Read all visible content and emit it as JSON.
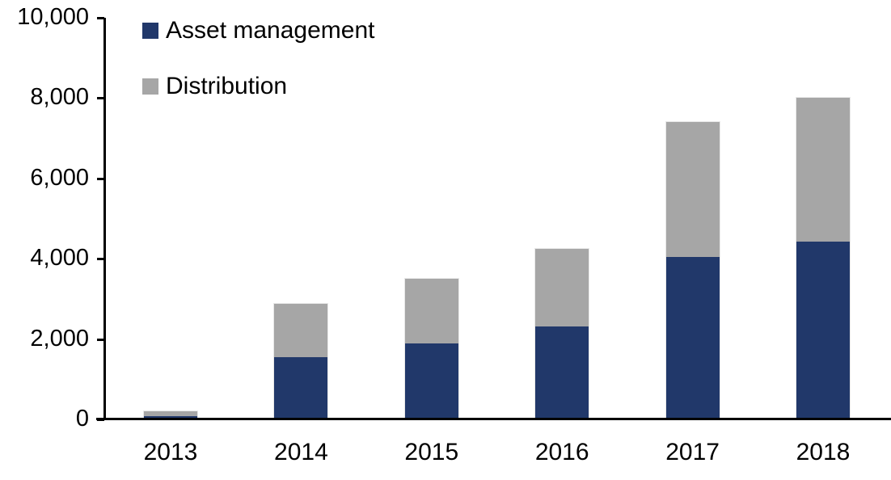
{
  "chart_data": {
    "type": "bar",
    "stacked": true,
    "title": "",
    "xlabel": "",
    "ylabel": "",
    "grid": false,
    "legend_position": "top-left",
    "categories": [
      "2013",
      "2014",
      "2015",
      "2016",
      "2017",
      "2018"
    ],
    "series": [
      {
        "name": "Asset management",
        "color": "#21386A",
        "values": [
          90,
          1550,
          1900,
          2320,
          4050,
          4430
        ]
      },
      {
        "name": "Distribution",
        "color": "#A6A6A6",
        "values": [
          110,
          1320,
          1600,
          1930,
          3350,
          3570
        ]
      }
    ],
    "totals": [
      200,
      2870,
      3500,
      4250,
      7400,
      8000
    ],
    "ylim": [
      0,
      10000
    ],
    "ytick_interval": 2000,
    "ytick_values": [
      0,
      2000,
      4000,
      6000,
      8000,
      10000
    ],
    "ytick_labels": [
      "0",
      "2,000",
      "4,000",
      "6,000",
      "8,000",
      "10,000"
    ]
  }
}
